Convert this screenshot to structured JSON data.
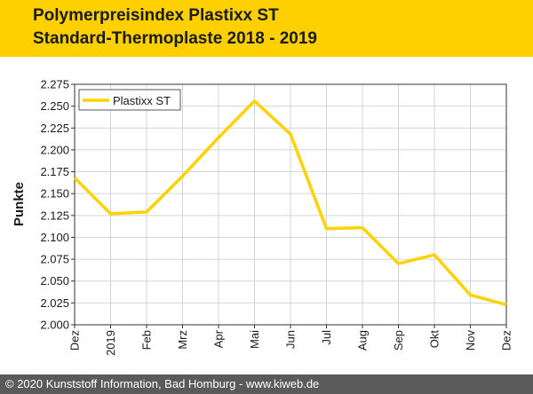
{
  "header": {
    "title_line1": "Polymerpreisindex Plastixx ST",
    "title_line2": "Standard-Thermoplaste 2018 - 2019",
    "background": "#fed000"
  },
  "footer": {
    "text": "© 2020 Kunststoff Information, Bad Homburg - www.kiweb.de",
    "background": "#5a5a5a"
  },
  "chart_data": {
    "type": "line",
    "categories": [
      "Dez",
      "2019",
      "Feb",
      "Mrz",
      "Apr",
      "Mai",
      "Jun",
      "Jul",
      "Aug",
      "Sep",
      "Okt",
      "Nov",
      "Dez"
    ],
    "series": [
      {
        "name": "Plastixx ST",
        "color": "#ffd200",
        "values": [
          2168,
          2127,
          2129,
          2170,
          2214,
          2256,
          2218,
          2110,
          2111,
          2070,
          2080,
          2034,
          2023
        ]
      }
    ],
    "ylabel": "Punkte",
    "ylim": [
      2000,
      2275
    ],
    "yticks": [
      2000,
      2025,
      2050,
      2075,
      2100,
      2125,
      2150,
      2175,
      2200,
      2225,
      2250,
      2275
    ],
    "ytick_labels": [
      "2.000",
      "2.025",
      "2.050",
      "2.075",
      "2.100",
      "2.125",
      "2.150",
      "2.175",
      "2.200",
      "2.225",
      "2.250",
      "2.275"
    ],
    "grid": true,
    "legend": "top-left"
  }
}
